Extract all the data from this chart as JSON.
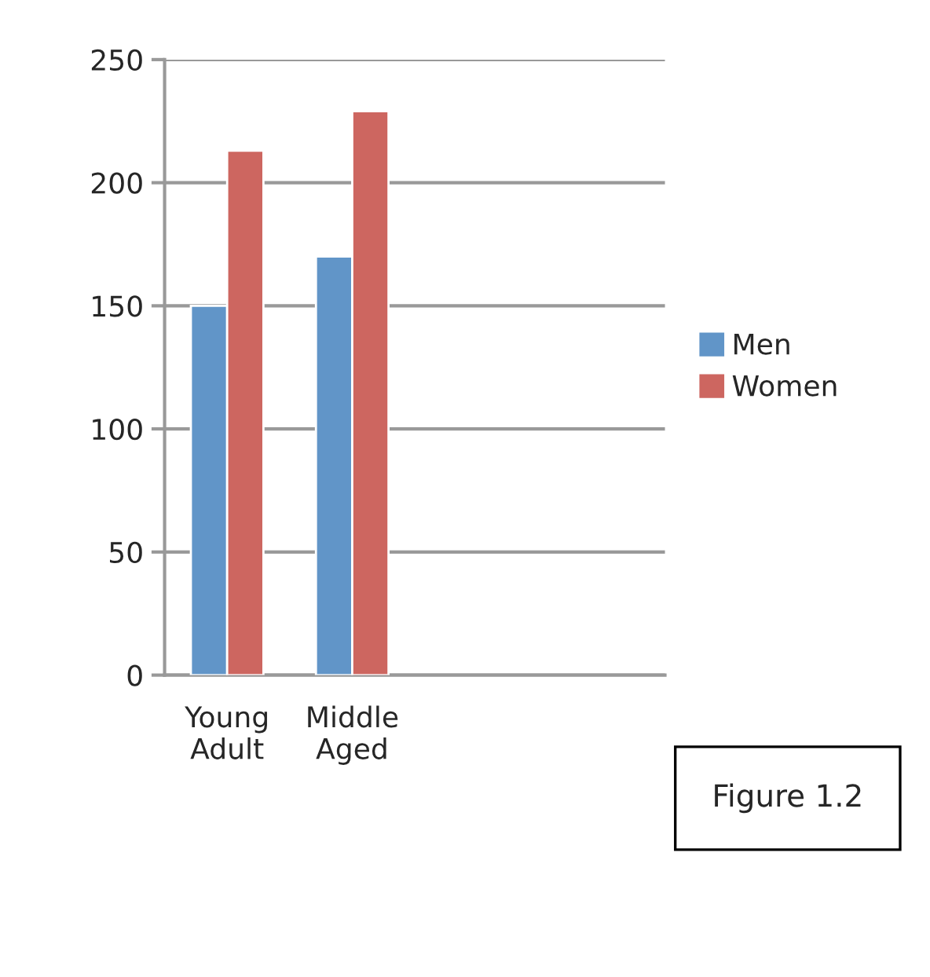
{
  "chart_data": {
    "type": "bar",
    "categories": [
      "Young\nAdult",
      "Middle\nAged",
      null,
      null
    ],
    "series": [
      {
        "name": "Men",
        "color": "#6195c8",
        "values": [
          150,
          170,
          null,
          null
        ]
      },
      {
        "name": "Women",
        "color": "#cd6660",
        "values": [
          213,
          229,
          null,
          null
        ]
      }
    ],
    "ylim": [
      0,
      250
    ],
    "yticks": [
      0,
      50,
      100,
      150,
      200,
      250
    ],
    "grid": "y",
    "legend": "right",
    "annotations": [
      "Figure 1.2"
    ]
  }
}
